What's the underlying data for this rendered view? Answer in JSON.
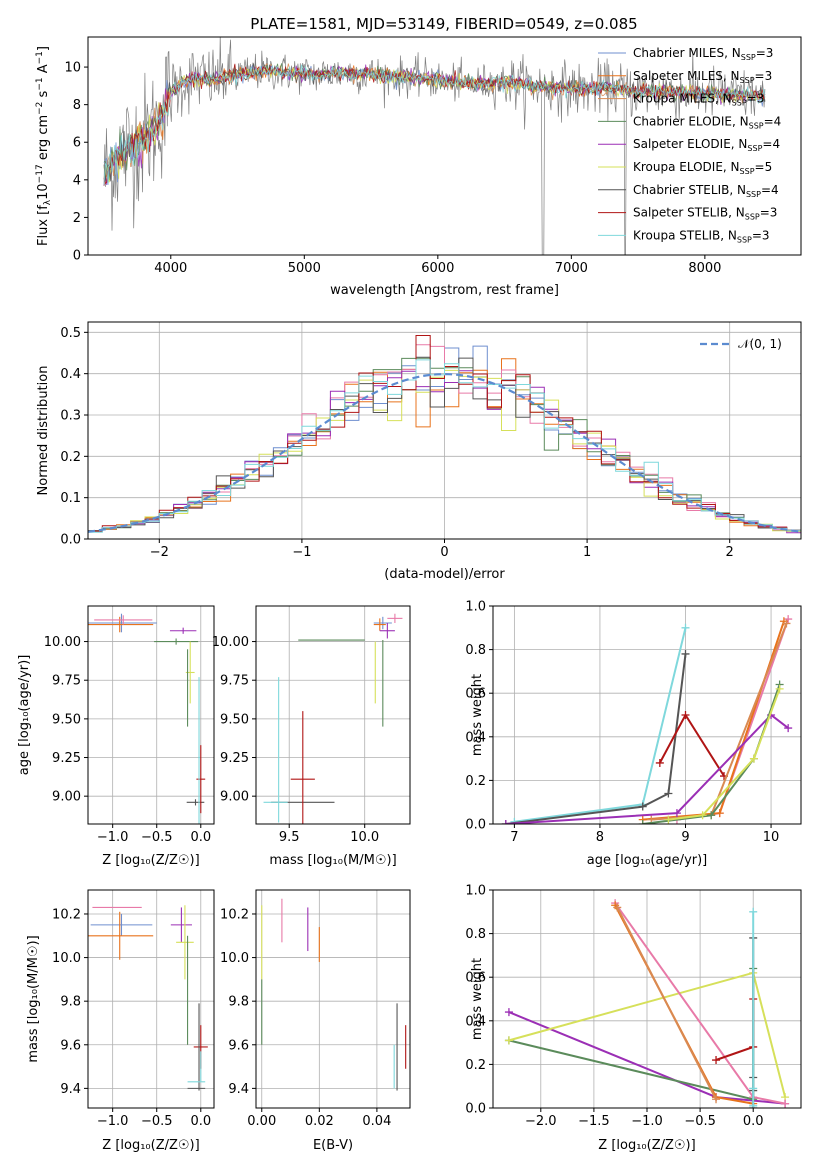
{
  "figure_title": "PLATE=1581, MJD=53149, FIBERID=0549, z=0.085",
  "colors": {
    "Chabrier MILES": "#6f8fcf",
    "Salpeter MILES": "#e8731d",
    "Kroupa MILES": "#d98a52",
    "Chabrier ELODIE": "#5b8b5b",
    "Salpeter ELODIE": "#9b2fb5",
    "Kroupa ELODIE": "#d6e05a",
    "Chabrier STELIB": "#555555",
    "Salpeter STELIB": "#b01515",
    "Kroupa STELIB": "#7fd8dc",
    "pink": "#e87aa8",
    "data": "#7f7f7f",
    "gauss": "#5b8bd0"
  },
  "chart_data": [
    {
      "type": "line",
      "title": "PLATE=1581, MJD=53149, FIBERID=0549, z=0.085",
      "xlabel": "wavelength [Angstrom, rest frame]",
      "ylabel": "Flux [f_λ 10^-17 erg cm^-2 s^-1 A^-1]",
      "xlim": [
        3380,
        8720
      ],
      "ylim": [
        0,
        11.6
      ],
      "xticks": [
        4000,
        5000,
        6000,
        7000,
        8000
      ],
      "yticks": [
        0,
        2,
        4,
        6,
        8,
        10
      ],
      "legend_position": "right",
      "legend": [
        {
          "key": "Chabrier MILES",
          "text": "Chabrier MILES, N",
          "sub": "SSP",
          "val": "=3"
        },
        {
          "key": "Salpeter MILES",
          "text": "Salpeter MILES, N",
          "sub": "SSP",
          "val": "=3"
        },
        {
          "key": "Kroupa MILES",
          "text": "Kroupa MILES, N",
          "sub": "SSP",
          "val": "=3"
        },
        {
          "key": "Chabrier ELODIE",
          "text": "Chabrier ELODIE, N",
          "sub": "SSP",
          "val": "=4"
        },
        {
          "key": "Salpeter ELODIE",
          "text": "Salpeter ELODIE, N",
          "sub": "SSP",
          "val": "=4"
        },
        {
          "key": "Kroupa ELODIE",
          "text": "Kroupa ELODIE, N",
          "sub": "SSP",
          "val": "=5"
        },
        {
          "key": "Chabrier STELIB",
          "text": "Chabrier STELIB, N",
          "sub": "SSP",
          "val": "=4"
        },
        {
          "key": "Salpeter STELIB",
          "text": "Salpeter STELIB, N",
          "sub": "SSP",
          "val": "=3"
        },
        {
          "key": "Kroupa STELIB",
          "text": "Kroupa STELIB, N",
          "sub": "SSP",
          "val": "=3"
        }
      ],
      "continuum": [
        [
          3500,
          4.2
        ],
        [
          3600,
          5.2
        ],
        [
          3700,
          5.8
        ],
        [
          3800,
          6.2
        ],
        [
          3900,
          6.9
        ],
        [
          4000,
          8.6
        ],
        [
          4100,
          9.3
        ],
        [
          4200,
          9.4
        ],
        [
          4300,
          9.3
        ],
        [
          4400,
          9.5
        ],
        [
          4500,
          9.6
        ],
        [
          4700,
          9.8
        ],
        [
          4900,
          9.7
        ],
        [
          5100,
          9.6
        ],
        [
          5300,
          9.7
        ],
        [
          5500,
          9.6
        ],
        [
          5700,
          9.5
        ],
        [
          5900,
          9.4
        ],
        [
          6100,
          9.2
        ],
        [
          6300,
          9.1
        ],
        [
          6500,
          9.2
        ],
        [
          6700,
          9.0
        ],
        [
          6900,
          8.9
        ],
        [
          7100,
          8.8
        ],
        [
          7300,
          8.9
        ],
        [
          7500,
          8.7
        ],
        [
          7700,
          8.7
        ],
        [
          7900,
          8.6
        ],
        [
          8100,
          8.6
        ],
        [
          8300,
          8.5
        ],
        [
          8450,
          8.4
        ]
      ],
      "wavelength_range": [
        3500,
        8450
      ]
    },
    {
      "type": "line",
      "xlabel": "(data-model)/error",
      "ylabel": "Normed distribution",
      "xlim": [
        -2.5,
        2.5
      ],
      "ylim": [
        0,
        0.525
      ],
      "xticks": [
        -2,
        -1,
        0,
        1,
        2
      ],
      "yticks": [
        0.0,
        0.1,
        0.2,
        0.3,
        0.4,
        0.5
      ],
      "legend_label": "𝒩(0, 1)",
      "legend_position": "top-right",
      "gaussian": {
        "mean": 0,
        "sigma": 1
      },
      "histogram_bins": 50,
      "histogram_range": [
        -2.5,
        2.5
      ]
    },
    {
      "type": "scatter",
      "xlabel": "Z [log₁₀(Z/Z☉)]",
      "ylabel": "age  [log₁₀(age/yr)]",
      "xlim": [
        -1.28,
        0.15
      ],
      "ylim": [
        8.82,
        10.23
      ],
      "xticks": [
        -1.0,
        -0.5,
        0.0
      ],
      "yticks": [
        9.0,
        9.25,
        9.5,
        9.75,
        10.0
      ],
      "points": [
        {
          "c": "Chabrier MILES",
          "x": -0.9,
          "y": 10.12,
          "xe": 0.4,
          "ye": 0.06
        },
        {
          "c": "Salpeter MILES",
          "x": -0.92,
          "y": 10.11,
          "xe": 0.38,
          "ye": 0.05
        },
        {
          "c": "pink",
          "x": -0.88,
          "y": 10.14,
          "xe": 0.33,
          "ye": 0.03
        },
        {
          "c": "Chabrier ELODIE",
          "x": -0.28,
          "y": 10.0,
          "xe": 0.25,
          "ye": 0.02
        },
        {
          "c": "Salpeter ELODIE",
          "x": -0.2,
          "y": 10.07,
          "xe": 0.15,
          "ye": 0.02
        },
        {
          "c": "Kroupa ELODIE",
          "x": -0.12,
          "y": 9.8,
          "xe": 0.05,
          "ye": 0.2
        },
        {
          "c": "Chabrier STELIB",
          "x": -0.06,
          "y": 8.96,
          "xe": 0.1,
          "ye": 0.02
        },
        {
          "c": "Salpeter STELIB",
          "x": 0.0,
          "y": 9.11,
          "xe": 0.05,
          "ye": 0.22
        },
        {
          "c": "Kroupa STELIB",
          "x": -0.02,
          "y": 9.25,
          "xe": 0.01,
          "ye": 0.52
        },
        {
          "c": "Chabrier ELODIE",
          "x": -0.15,
          "y": 9.7,
          "xe": 0.0,
          "ye": 0.25
        }
      ]
    },
    {
      "type": "scatter",
      "xlabel": "mass [log₁₀(M/M☉)]",
      "xlim": [
        9.28,
        10.3
      ],
      "ylim": [
        8.82,
        10.23
      ],
      "xticks": [
        9.5,
        10.0
      ],
      "yticks": [
        9.0,
        9.25,
        9.5,
        9.75,
        10.0
      ],
      "points": [
        {
          "c": "Chabrier MILES",
          "x": 10.12,
          "y": 10.12,
          "xe": 0.06,
          "ye": 0.04
        },
        {
          "c": "Salpeter MILES",
          "x": 10.1,
          "y": 10.11,
          "xe": 0.04,
          "ye": 0.04
        },
        {
          "c": "pink",
          "x": 10.2,
          "y": 10.15,
          "xe": 0.05,
          "ye": 0.03
        },
        {
          "c": "Chabrier ELODIE",
          "x": 9.78,
          "y": 10.01,
          "xe": 0.22,
          "ye": 0.0
        },
        {
          "c": "Chabrier ELODIE",
          "x": 10.12,
          "y": 9.73,
          "xe": 0.0,
          "ye": 0.28
        },
        {
          "c": "Salpeter ELODIE",
          "x": 10.15,
          "y": 10.07,
          "xe": 0.05,
          "ye": 0.05
        },
        {
          "c": "Kroupa ELODIE",
          "x": 10.07,
          "y": 9.8,
          "xe": 0.0,
          "ye": 0.2
        },
        {
          "c": "Chabrier STELIB",
          "x": 9.59,
          "y": 8.96,
          "xe": 0.21,
          "ye": 0.0
        },
        {
          "c": "Salpeter STELIB",
          "x": 9.59,
          "y": 9.11,
          "xe": 0.08,
          "ye": 0.44
        },
        {
          "c": "Kroupa STELIB",
          "x": 9.43,
          "y": 9.3,
          "xe": 0.0,
          "ye": 0.47
        },
        {
          "c": "Kroupa STELIB",
          "x": 9.41,
          "y": 8.96,
          "xe": 0.08,
          "ye": 0.0
        }
      ]
    },
    {
      "type": "line",
      "xlabel": "age  [log₁₀(age/yr)]",
      "ylabel": "mass weight",
      "xlim": [
        6.75,
        10.35
      ],
      "ylim": [
        0,
        1.0
      ],
      "xticks": [
        7,
        8,
        9,
        10
      ],
      "yticks": [
        0.0,
        0.2,
        0.4,
        0.6,
        0.8,
        1.0
      ],
      "series": [
        {
          "c": "Kroupa STELIB",
          "x": [
            7.0,
            8.5,
            9.0
          ],
          "y": [
            0.01,
            0.09,
            0.9
          ]
        },
        {
          "c": "Chabrier STELIB",
          "x": [
            6.9,
            8.5,
            8.8,
            9.0
          ],
          "y": [
            0.0,
            0.08,
            0.14,
            0.78
          ]
        },
        {
          "c": "Salpeter STELIB",
          "x": [
            8.7,
            9.0,
            9.45
          ],
          "y": [
            0.28,
            0.5,
            0.22
          ]
        },
        {
          "c": "pink",
          "x": [
            8.9,
            9.4,
            10.2
          ],
          "y": [
            0.02,
            0.05,
            0.94
          ]
        },
        {
          "c": "Salpeter MILES",
          "x": [
            8.5,
            9.4,
            10.15
          ],
          "y": [
            0.02,
            0.05,
            0.93
          ]
        },
        {
          "c": "Kroupa MILES",
          "x": [
            8.6,
            9.3,
            10.18
          ],
          "y": [
            0.02,
            0.04,
            0.92
          ]
        },
        {
          "c": "Salpeter ELODIE",
          "x": [
            6.9,
            8.9,
            10.0,
            10.2
          ],
          "y": [
            0.0,
            0.05,
            0.5,
            0.44
          ]
        },
        {
          "c": "Chabrier ELODIE",
          "x": [
            8.5,
            9.3,
            9.8,
            10.1
          ],
          "y": [
            0.0,
            0.04,
            0.3,
            0.64
          ]
        },
        {
          "c": "Kroupa ELODIE",
          "x": [
            8.8,
            9.2,
            9.8,
            10.1
          ],
          "y": [
            0.02,
            0.04,
            0.3,
            0.62
          ]
        }
      ]
    },
    {
      "type": "scatter",
      "xlabel": "Z [log₁₀(Z/Z☉)]",
      "ylabel": "mass [log₁₀(M/M☉)]",
      "xlim": [
        -1.28,
        0.15
      ],
      "ylim": [
        9.31,
        10.31
      ],
      "xticks": [
        -1.0,
        -0.5,
        0.0
      ],
      "yticks": [
        9.4,
        9.6,
        9.8,
        10.0,
        10.2
      ],
      "points": [
        {
          "c": "pink",
          "x": -0.95,
          "y": 10.23,
          "xe": 0.28,
          "ye": 0.0
        },
        {
          "c": "Chabrier MILES",
          "x": -0.9,
          "y": 10.15,
          "xe": 0.35,
          "ye": 0.05
        },
        {
          "c": "Salpeter MILES",
          "x": -0.92,
          "y": 10.1,
          "xe": 0.38,
          "ye": 0.11
        },
        {
          "c": "Salpeter ELODIE",
          "x": -0.22,
          "y": 10.15,
          "xe": 0.12,
          "ye": 0.08
        },
        {
          "c": "Kroupa ELODIE",
          "x": -0.18,
          "y": 10.07,
          "xe": 0.1,
          "ye": 0.17
        },
        {
          "c": "Chabrier ELODIE",
          "x": -0.15,
          "y": 9.85,
          "xe": 0.0,
          "ye": 0.25
        },
        {
          "c": "Salpeter STELIB",
          "x": 0.0,
          "y": 9.59,
          "xe": 0.08,
          "ye": 0.1
        },
        {
          "c": "Chabrier STELIB",
          "x": -0.02,
          "y": 9.59,
          "xe": 0.0,
          "ye": 0.2
        },
        {
          "c": "Kroupa STELIB",
          "x": -0.05,
          "y": 9.43,
          "xe": 0.1,
          "ye": 0.0
        },
        {
          "c": "Chabrier STELIB",
          "x": -0.05,
          "y": 9.4,
          "xe": 0.1,
          "ye": 0.0
        },
        {
          "c": "Kroupa STELIB",
          "x": 0.0,
          "y": 9.5,
          "xe": 0.0,
          "ye": 0.07
        }
      ]
    },
    {
      "type": "scatter",
      "xlabel": "E(B-V)",
      "xlim": [
        -0.002,
        0.0515
      ],
      "ylim": [
        9.31,
        10.31
      ],
      "xticks": [
        0.0,
        0.02,
        0.04
      ],
      "yticks": [
        9.4,
        9.6,
        9.8,
        10.0,
        10.2
      ],
      "points": [
        {
          "c": "Kroupa ELODIE",
          "x": 0.0,
          "y": 10.07,
          "xe": 0.0,
          "ye": 0.17
        },
        {
          "c": "Chabrier ELODIE",
          "x": 0.0,
          "y": 9.75,
          "xe": 0.0,
          "ye": 0.15
        },
        {
          "c": "pink",
          "x": 0.007,
          "y": 10.17,
          "xe": 0.0,
          "ye": 0.1
        },
        {
          "c": "Salpeter ELODIE",
          "x": 0.016,
          "y": 10.13,
          "xe": 0.0,
          "ye": 0.1
        },
        {
          "c": "Salpeter MILES",
          "x": 0.02,
          "y": 10.06,
          "xe": 0.0,
          "ye": 0.08
        },
        {
          "c": "Chabrier STELIB",
          "x": 0.047,
          "y": 9.59,
          "xe": 0.0,
          "ye": 0.2
        },
        {
          "c": "Kroupa STELIB",
          "x": 0.046,
          "y": 9.5,
          "xe": 0.0,
          "ye": 0.1
        },
        {
          "c": "Salpeter STELIB",
          "x": 0.05,
          "y": 9.59,
          "xe": 0.0,
          "ye": 0.1
        }
      ]
    },
    {
      "type": "line",
      "xlabel": "Z [log₁₀(Z/Z☉)]",
      "ylabel": "mass weight",
      "xlim": [
        -2.45,
        0.45
      ],
      "ylim": [
        0,
        1.0
      ],
      "xticks": [
        -2.0,
        -1.5,
        -1.0,
        -0.5,
        0.0
      ],
      "yticks": [
        0.0,
        0.2,
        0.4,
        0.6,
        0.8,
        1.0
      ],
      "series": [
        {
          "c": "Salpeter ELODIE",
          "x": [
            -2.3,
            -0.35,
            0.3
          ],
          "y": [
            0.44,
            0.05,
            0.02
          ]
        },
        {
          "c": "Chabrier ELODIE",
          "x": [
            -2.3,
            0.0,
            0.0
          ],
          "y": [
            0.31,
            0.04,
            0.64
          ]
        },
        {
          "c": "Kroupa ELODIE",
          "x": [
            -2.3,
            0.0,
            0.3
          ],
          "y": [
            0.31,
            0.62,
            0.05
          ]
        },
        {
          "c": "pink",
          "x": [
            -1.3,
            0.0,
            0.3
          ],
          "y": [
            0.94,
            0.05,
            0.02
          ]
        },
        {
          "c": "Salpeter MILES",
          "x": [
            -1.3,
            -0.35,
            0.0
          ],
          "y": [
            0.93,
            0.05,
            0.02
          ]
        },
        {
          "c": "Kroupa MILES",
          "x": [
            -1.28,
            -0.35
          ],
          "y": [
            0.92,
            0.04
          ]
        },
        {
          "c": "Salpeter STELIB",
          "x": [
            -0.35,
            0.0,
            0.0
          ],
          "y": [
            0.22,
            0.28,
            0.5
          ]
        },
        {
          "c": "Chabrier STELIB",
          "x": [
            0.0,
            0.0,
            0.0,
            0.0
          ],
          "y": [
            0.0,
            0.08,
            0.14,
            0.78
          ]
        },
        {
          "c": "Kroupa STELIB",
          "x": [
            0.0,
            0.0,
            0.0
          ],
          "y": [
            0.01,
            0.09,
            0.9
          ]
        }
      ]
    }
  ]
}
